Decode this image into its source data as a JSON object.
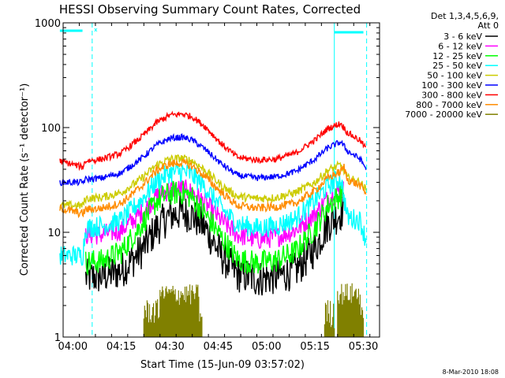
{
  "chart_data": {
    "type": "line",
    "title": "HESSI Observing Summary Count Rates, Corrected",
    "xlabel": "Start Time (15-Jun-09 03:57:02)",
    "ylabel": "Corrected Count Rate (s⁻¹ detector⁻¹)",
    "footer": "8-Mar-2010 18:08",
    "x_unit": "minutes since 03:57:02",
    "xlim": [
      0,
      98
    ],
    "ylim": [
      1,
      1000
    ],
    "y_scale": "log",
    "x_ticks": [
      {
        "t": 3,
        "label": "04:00"
      },
      {
        "t": 18,
        "label": "04:15"
      },
      {
        "t": 33,
        "label": "04:30"
      },
      {
        "t": 48,
        "label": "04:45"
      },
      {
        "t": 63,
        "label": "05:00"
      },
      {
        "t": 78,
        "label": "05:15"
      },
      {
        "t": 93,
        "label": "05:30"
      }
    ],
    "y_ticks": [
      {
        "v": 1,
        "label": "1"
      },
      {
        "v": 10,
        "label": "10"
      },
      {
        "v": 100,
        "label": "100"
      },
      {
        "v": 1000,
        "label": "1000"
      }
    ],
    "legend_header": [
      "Det 1,3,4,5,6,9,",
      "Att 0"
    ],
    "legend_position": "outside-right",
    "series": [
      {
        "name": "3 - 6 keV",
        "color": "#000000",
        "noise": 0.18,
        "points": [
          [
            7,
            3.7
          ],
          [
            12,
            3.8
          ],
          [
            18,
            4.3
          ],
          [
            24,
            6.5
          ],
          [
            29,
            11
          ],
          [
            33,
            14.5
          ],
          [
            37,
            15.5
          ],
          [
            40,
            14.5
          ],
          [
            44,
            11
          ],
          [
            49,
            6
          ],
          [
            54,
            4
          ],
          [
            60,
            3.6
          ],
          [
            66,
            3.8
          ],
          [
            72,
            4.3
          ],
          [
            78,
            7
          ],
          [
            82,
            12
          ],
          [
            86,
            15.5
          ],
          [
            87,
            17
          ]
        ]
      },
      {
        "name": "6 - 12 keV",
        "color": "#ff00ff",
        "noise": 0.1,
        "points": [
          [
            7,
            9.5
          ],
          [
            12,
            9.5
          ],
          [
            18,
            10.5
          ],
          [
            24,
            15
          ],
          [
            29,
            22
          ],
          [
            33,
            25.5
          ],
          [
            37,
            26
          ],
          [
            40,
            24
          ],
          [
            44,
            19
          ],
          [
            49,
            13
          ],
          [
            54,
            9.5
          ],
          [
            60,
            8.5
          ],
          [
            66,
            9
          ],
          [
            72,
            10.5
          ],
          [
            78,
            15
          ],
          [
            82,
            21
          ],
          [
            86,
            25.5
          ],
          [
            87,
            27
          ]
        ]
      },
      {
        "name": "12 - 25 keV",
        "color": "#00ff00",
        "noise": 0.12,
        "points": [
          [
            7,
            5.2
          ],
          [
            12,
            5.3
          ],
          [
            18,
            6.5
          ],
          [
            24,
            11.5
          ],
          [
            29,
            20
          ],
          [
            33,
            23.5
          ],
          [
            37,
            24
          ],
          [
            40,
            21.5
          ],
          [
            44,
            15
          ],
          [
            49,
            9
          ],
          [
            54,
            5.5
          ],
          [
            60,
            5.1
          ],
          [
            66,
            5.4
          ],
          [
            72,
            6.5
          ],
          [
            78,
            11
          ],
          [
            82,
            18
          ],
          [
            86,
            23
          ],
          [
            87,
            25
          ]
        ]
      },
      {
        "name": "25 - 50 keV",
        "color": "#00ffff",
        "noise": 0.1,
        "points": [
          [
            -1,
            6
          ],
          [
            6,
            6
          ],
          [
            7,
            11
          ],
          [
            12,
            11.5
          ],
          [
            18,
            13
          ],
          [
            24,
            20
          ],
          [
            29,
            31
          ],
          [
            33,
            37
          ],
          [
            37,
            38
          ],
          [
            40,
            35
          ],
          [
            44,
            27
          ],
          [
            49,
            17
          ],
          [
            54,
            12
          ],
          [
            60,
            11
          ],
          [
            66,
            11.5
          ],
          [
            72,
            13.5
          ],
          [
            78,
            20
          ],
          [
            82,
            28
          ],
          [
            86,
            33
          ],
          [
            88,
            14
          ],
          [
            92,
            13
          ],
          [
            94,
            8
          ]
        ]
      },
      {
        "name": "50 - 100 keV",
        "color": "#cccc00",
        "noise": 0.04,
        "points": [
          [
            -1,
            18
          ],
          [
            6,
            18
          ],
          [
            7,
            21
          ],
          [
            12,
            21.5
          ],
          [
            18,
            24
          ],
          [
            24,
            32
          ],
          [
            29,
            44
          ],
          [
            33,
            50
          ],
          [
            37,
            51
          ],
          [
            40,
            48
          ],
          [
            44,
            39
          ],
          [
            49,
            28
          ],
          [
            54,
            22
          ],
          [
            60,
            21
          ],
          [
            66,
            21.5
          ],
          [
            72,
            24
          ],
          [
            78,
            30
          ],
          [
            82,
            39
          ],
          [
            86,
            44
          ],
          [
            88,
            33
          ],
          [
            92,
            30
          ],
          [
            94,
            25
          ]
        ]
      },
      {
        "name": "100 - 300 keV",
        "color": "#0000ff",
        "noise": 0.03,
        "points": [
          [
            -1,
            30
          ],
          [
            6,
            30
          ],
          [
            7,
            32
          ],
          [
            12,
            33
          ],
          [
            18,
            37
          ],
          [
            24,
            50
          ],
          [
            29,
            68
          ],
          [
            33,
            79
          ],
          [
            37,
            81
          ],
          [
            40,
            76
          ],
          [
            44,
            62
          ],
          [
            49,
            45
          ],
          [
            54,
            35
          ],
          [
            60,
            33
          ],
          [
            66,
            34
          ],
          [
            72,
            38
          ],
          [
            78,
            50
          ],
          [
            82,
            64
          ],
          [
            86,
            73
          ],
          [
            88,
            60
          ],
          [
            92,
            50
          ],
          [
            94,
            40
          ]
        ]
      },
      {
        "name": "300 - 800 keV",
        "color": "#ff0000",
        "noise": 0.03,
        "points": [
          [
            -1,
            48
          ],
          [
            6,
            42
          ],
          [
            7,
            48
          ],
          [
            12,
            50
          ],
          [
            18,
            57
          ],
          [
            24,
            80
          ],
          [
            29,
            112
          ],
          [
            33,
            131
          ],
          [
            37,
            135
          ],
          [
            40,
            127
          ],
          [
            44,
            102
          ],
          [
            49,
            70
          ],
          [
            54,
            52
          ],
          [
            60,
            49
          ],
          [
            66,
            50
          ],
          [
            72,
            57
          ],
          [
            78,
            76
          ],
          [
            82,
            98
          ],
          [
            86,
            110
          ],
          [
            88,
            90
          ],
          [
            92,
            75
          ],
          [
            94,
            62
          ]
        ]
      },
      {
        "name": "800 - 7000 keV",
        "color": "#ff8c00",
        "noise": 0.04,
        "points": [
          [
            -1,
            17
          ],
          [
            6,
            15
          ],
          [
            7,
            16.5
          ],
          [
            12,
            17
          ],
          [
            18,
            19
          ],
          [
            24,
            27
          ],
          [
            29,
            39
          ],
          [
            33,
            45
          ],
          [
            37,
            46
          ],
          [
            40,
            43
          ],
          [
            44,
            34
          ],
          [
            49,
            24
          ],
          [
            54,
            18
          ],
          [
            60,
            17
          ],
          [
            66,
            17.5
          ],
          [
            72,
            19
          ],
          [
            78,
            25
          ],
          [
            82,
            33
          ],
          [
            86,
            38
          ],
          [
            87,
            42
          ],
          [
            88,
            32
          ],
          [
            92,
            28
          ],
          [
            94,
            23
          ]
        ]
      },
      {
        "name": "7000 - 20000 keV",
        "color": "#808000",
        "noise": 0,
        "points": []
      }
    ]
  }
}
